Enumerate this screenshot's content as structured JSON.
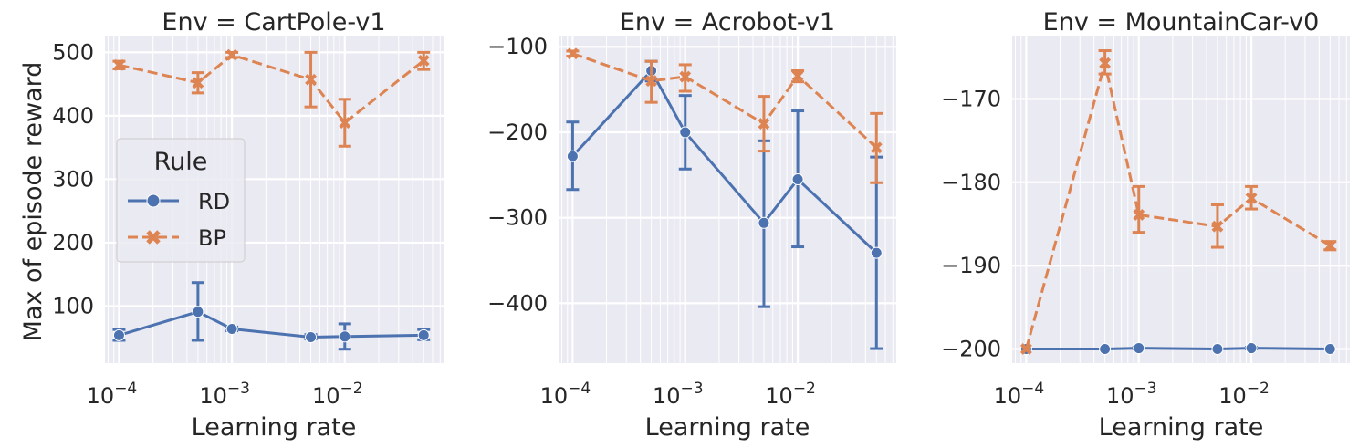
{
  "figure": {
    "ylabel": "Max of episode reward",
    "xlabel": "Learning rate"
  },
  "legend": {
    "title": "Rule",
    "entries": [
      {
        "label": "RD",
        "color": "#4c72b0",
        "marker": "circle",
        "dash": "solid"
      },
      {
        "label": "BP",
        "color": "#dd8452",
        "marker": "x",
        "dash": "dashed"
      }
    ]
  },
  "chart_data": [
    {
      "type": "line",
      "title": "Env = CartPole-v1",
      "xlabel": "Learning rate",
      "ylabel": "Max of episode reward",
      "xscale": "log",
      "xlim": [
        7.5e-05,
        0.075
      ],
      "ylim": [
        10,
        525
      ],
      "x_ticks": [
        0.0001,
        0.001,
        0.01
      ],
      "x_tick_labels": [
        {
          "base": "10",
          "exp": "−4"
        },
        {
          "base": "10",
          "exp": "−3"
        },
        {
          "base": "10",
          "exp": "−2"
        }
      ],
      "y_ticks": [
        100,
        200,
        300,
        400,
        500
      ],
      "y_tick_labels": [
        "100",
        "200",
        "300",
        "400",
        "500"
      ],
      "x": [
        0.0001,
        0.0005,
        0.001,
        0.005,
        0.01,
        0.05
      ],
      "series": [
        {
          "name": "RD",
          "values": [
            54,
            91,
            64,
            51,
            52,
            54
          ],
          "err_low": [
            46,
            46,
            61,
            48,
            32,
            47
          ],
          "err_high": [
            63,
            137,
            67,
            55,
            72,
            63
          ]
        },
        {
          "name": "BP",
          "values": [
            480,
            452,
            496,
            457,
            389,
            487
          ],
          "err_low": [
            474,
            436,
            492,
            414,
            352,
            473
          ],
          "err_high": [
            486,
            468,
            500,
            500,
            426,
            500
          ]
        }
      ],
      "grid": true,
      "legend": "center-left"
    },
    {
      "type": "line",
      "title": "Env = Acrobot-v1",
      "xlabel": "Learning rate",
      "xscale": "log",
      "xlim": [
        7.5e-05,
        0.075
      ],
      "ylim": [
        -470,
        -88
      ],
      "x_ticks": [
        0.0001,
        0.001,
        0.01
      ],
      "x_tick_labels": [
        {
          "base": "10",
          "exp": "−4"
        },
        {
          "base": "10",
          "exp": "−3"
        },
        {
          "base": "10",
          "exp": "−2"
        }
      ],
      "y_ticks": [
        -100,
        -200,
        -300,
        -400
      ],
      "y_tick_labels": [
        "−100",
        "−200",
        "−300",
        "−400"
      ],
      "x": [
        0.0001,
        0.0005,
        0.001,
        0.005,
        0.01,
        0.05
      ],
      "series": [
        {
          "name": "RD",
          "values": [
            -228,
            -128,
            -200,
            -306,
            -255,
            -341
          ],
          "err_low": [
            -267,
            -140,
            -243,
            -404,
            -334,
            -453
          ],
          "err_high": [
            -188,
            -117,
            -157,
            -210,
            -175,
            -229
          ]
        },
        {
          "name": "BP",
          "values": [
            -108,
            -140,
            -135,
            -190,
            -134,
            -218
          ],
          "err_low": [
            -111,
            -165,
            -152,
            -222,
            -141,
            -259
          ],
          "err_high": [
            -105,
            -117,
            -121,
            -158,
            -128,
            -178
          ]
        }
      ],
      "grid": true
    },
    {
      "type": "line",
      "title": "Env = MountainCar-v0",
      "xlabel": "Learning rate",
      "xscale": "log",
      "xlim": [
        7.5e-05,
        0.075
      ],
      "ylim": [
        -201.7,
        -162.5
      ],
      "x_ticks": [
        0.0001,
        0.001,
        0.01
      ],
      "x_tick_labels": [
        {
          "base": "10",
          "exp": "−4"
        },
        {
          "base": "10",
          "exp": "−3"
        },
        {
          "base": "10",
          "exp": "−2"
        }
      ],
      "y_ticks": [
        -170,
        -180,
        -190,
        -200
      ],
      "y_tick_labels": [
        "−170",
        "−180",
        "−190",
        "−200"
      ],
      "x": [
        0.0001,
        0.0005,
        0.001,
        0.005,
        0.01,
        0.05
      ],
      "series": [
        {
          "name": "RD",
          "values": [
            -200,
            -200,
            -199.9,
            -200,
            -199.9,
            -200
          ],
          "err_low": [
            -200,
            -200,
            -200,
            -200,
            -200,
            -200
          ],
          "err_high": [
            -200,
            -200,
            -199.8,
            -200,
            -199.8,
            -200
          ]
        },
        {
          "name": "BP",
          "values": [
            -200,
            -165.7,
            -183.9,
            -185.3,
            -181.9,
            -187.6
          ],
          "err_low": [
            -200,
            -167,
            -186,
            -187.8,
            -183.2,
            -188.1
          ],
          "err_high": [
            -200,
            -164.2,
            -180.5,
            -182.7,
            -180.5,
            -187.1
          ]
        }
      ],
      "grid": true
    }
  ]
}
